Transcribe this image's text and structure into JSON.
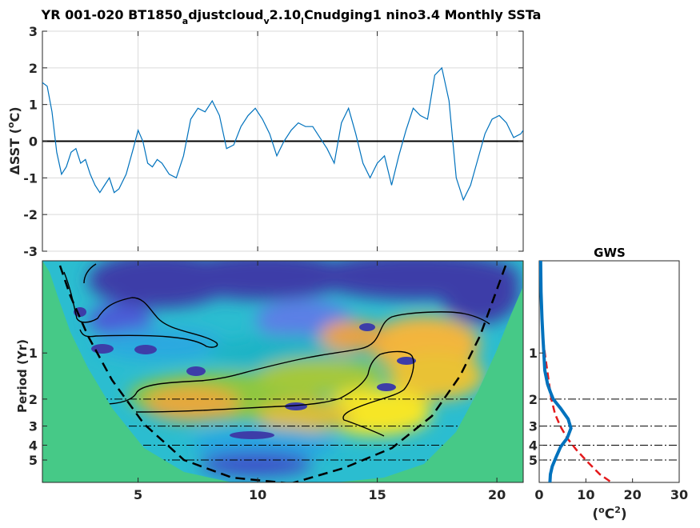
{
  "chart_data": [
    {
      "type": "line",
      "title": "YR 001-020 BT1850_adjustcloud_v2.10_lCnudging1 nino3.4 Monthly SSTa",
      "title_parts": {
        "a": "YR 001-020 BT1850",
        "b": "a",
        "c": "djustcloud",
        "d": "v",
        "e": "2.10",
        "f": "l",
        "g": "Cnudging1 nino3.4 Monthly SSTa"
      },
      "xlabel": "",
      "ylabel": "ΔSST (°C)",
      "ylabel_parts": {
        "a": "ΔSST (",
        "b": "o",
        "c": "C)"
      },
      "xlim": [
        1,
        21.1
      ],
      "ylim": [
        -3,
        3
      ],
      "xticks": [
        5,
        10,
        15,
        20
      ],
      "yticks": [
        -3,
        -2,
        -1,
        0,
        1,
        2,
        3
      ],
      "ytick_labels": [
        "-3",
        "-2",
        "-1",
        "0",
        "1",
        "2",
        "3"
      ],
      "grid": true,
      "zero_line": true,
      "line_color": "#0072BD",
      "series": [
        {
          "x": [
            1.0,
            1.2,
            1.4,
            1.6,
            1.8,
            2.0,
            2.2,
            2.4,
            2.6,
            2.8,
            3.0,
            3.2,
            3.4,
            3.6,
            3.8,
            4.0,
            4.2,
            4.5,
            4.8,
            5.0,
            5.2,
            5.4,
            5.6,
            5.8,
            6.0,
            6.3,
            6.6,
            6.9,
            7.2,
            7.5,
            7.8,
            8.1,
            8.4,
            8.7,
            9.0,
            9.3,
            9.6,
            9.9,
            10.2,
            10.5,
            10.8,
            11.1,
            11.4,
            11.7,
            12.0,
            12.3,
            12.6,
            12.9,
            13.2,
            13.5,
            13.8,
            14.1,
            14.4,
            14.7,
            15.0,
            15.3,
            15.6,
            15.9,
            16.2,
            16.5,
            16.8,
            17.1,
            17.4,
            17.7,
            18.0,
            18.3,
            18.6,
            18.9,
            19.2,
            19.5,
            19.8,
            20.1,
            20.4,
            20.7,
            21.0,
            21.1
          ],
          "y": [
            1.6,
            1.5,
            0.8,
            -0.3,
            -0.9,
            -0.7,
            -0.3,
            -0.2,
            -0.6,
            -0.5,
            -0.9,
            -1.2,
            -1.4,
            -1.2,
            -1.0,
            -1.4,
            -1.3,
            -0.9,
            -0.2,
            0.3,
            0.0,
            -0.6,
            -0.7,
            -0.5,
            -0.6,
            -0.9,
            -1.0,
            -0.4,
            0.6,
            0.9,
            0.8,
            1.1,
            0.7,
            -0.2,
            -0.1,
            0.4,
            0.7,
            0.9,
            0.6,
            0.2,
            -0.4,
            0.0,
            0.3,
            0.5,
            0.4,
            0.4,
            0.1,
            -0.2,
            -0.6,
            0.5,
            0.9,
            0.2,
            -0.6,
            -1.0,
            -0.6,
            -0.4,
            -1.2,
            -0.4,
            0.3,
            0.9,
            0.7,
            0.6,
            1.8,
            2.0,
            1.1,
            -1.0,
            -1.6,
            -1.2,
            -0.5,
            0.2,
            0.6,
            0.7,
            0.5,
            0.1,
            0.2,
            0.3
          ]
        }
      ]
    },
    {
      "type": "heatmap",
      "title": "",
      "xlabel": "",
      "ylabel": "Period (Yr)",
      "xlim": [
        1,
        21.1
      ],
      "xticks": [
        5,
        10,
        15,
        20
      ],
      "yticks": [
        1,
        2,
        3,
        4,
        5
      ],
      "ytick_labels": [
        "1",
        "2",
        "3",
        "4",
        "5"
      ],
      "ylim": [
        0.25,
        7
      ],
      "y_scale": "log",
      "reference_periods": [
        2,
        3,
        4,
        5
      ],
      "colormap": "parula",
      "outside_cone_color": "#46C987",
      "cone_of_influence": true,
      "significance_contour": true
    },
    {
      "type": "line",
      "title": "GWS",
      "xlabel": "(°C²)",
      "xlabel_parts": {
        "a": "(",
        "b": "o",
        "c": "C",
        "d": "2",
        "e": ")"
      },
      "ylabel": "",
      "xlim": [
        0,
        30
      ],
      "xticks": [
        0,
        10,
        20,
        30
      ],
      "yticks": [
        1,
        2,
        3,
        4,
        5
      ],
      "ytick_labels": [
        "1",
        "2",
        "3",
        "4",
        "5"
      ],
      "ylim": [
        0.25,
        7
      ],
      "y_scale": "log",
      "reference_periods": [
        2,
        3,
        4,
        5
      ],
      "series": [
        {
          "style": "solid",
          "color": "#0072BD",
          "x": [
            0.3,
            0.4,
            0.6,
            0.8,
            1.0,
            1.2,
            1.8,
            2.4,
            3.0,
            4.6,
            6.2,
            6.8,
            6.0,
            4.6,
            3.6,
            2.8,
            2.4,
            2.3
          ],
          "y": [
            0.25,
            0.4,
            0.6,
            0.8,
            1.0,
            1.3,
            1.6,
            1.8,
            2.0,
            2.3,
            2.7,
            3.1,
            3.6,
            4.1,
            4.8,
            5.5,
            6.2,
            7.0
          ]
        },
        {
          "style": "dashed",
          "color": "#E41A1C",
          "x": [
            0.3,
            0.5,
            0.8,
            1.2,
            2.0,
            2.6,
            3.4,
            4.5,
            6.0,
            8.0,
            10.5,
            13.0,
            15.5
          ],
          "y": [
            0.25,
            0.5,
            0.8,
            1.0,
            1.5,
            2.0,
            2.5,
            3.0,
            3.6,
            4.3,
            5.2,
            6.2,
            7.0
          ]
        }
      ]
    }
  ]
}
